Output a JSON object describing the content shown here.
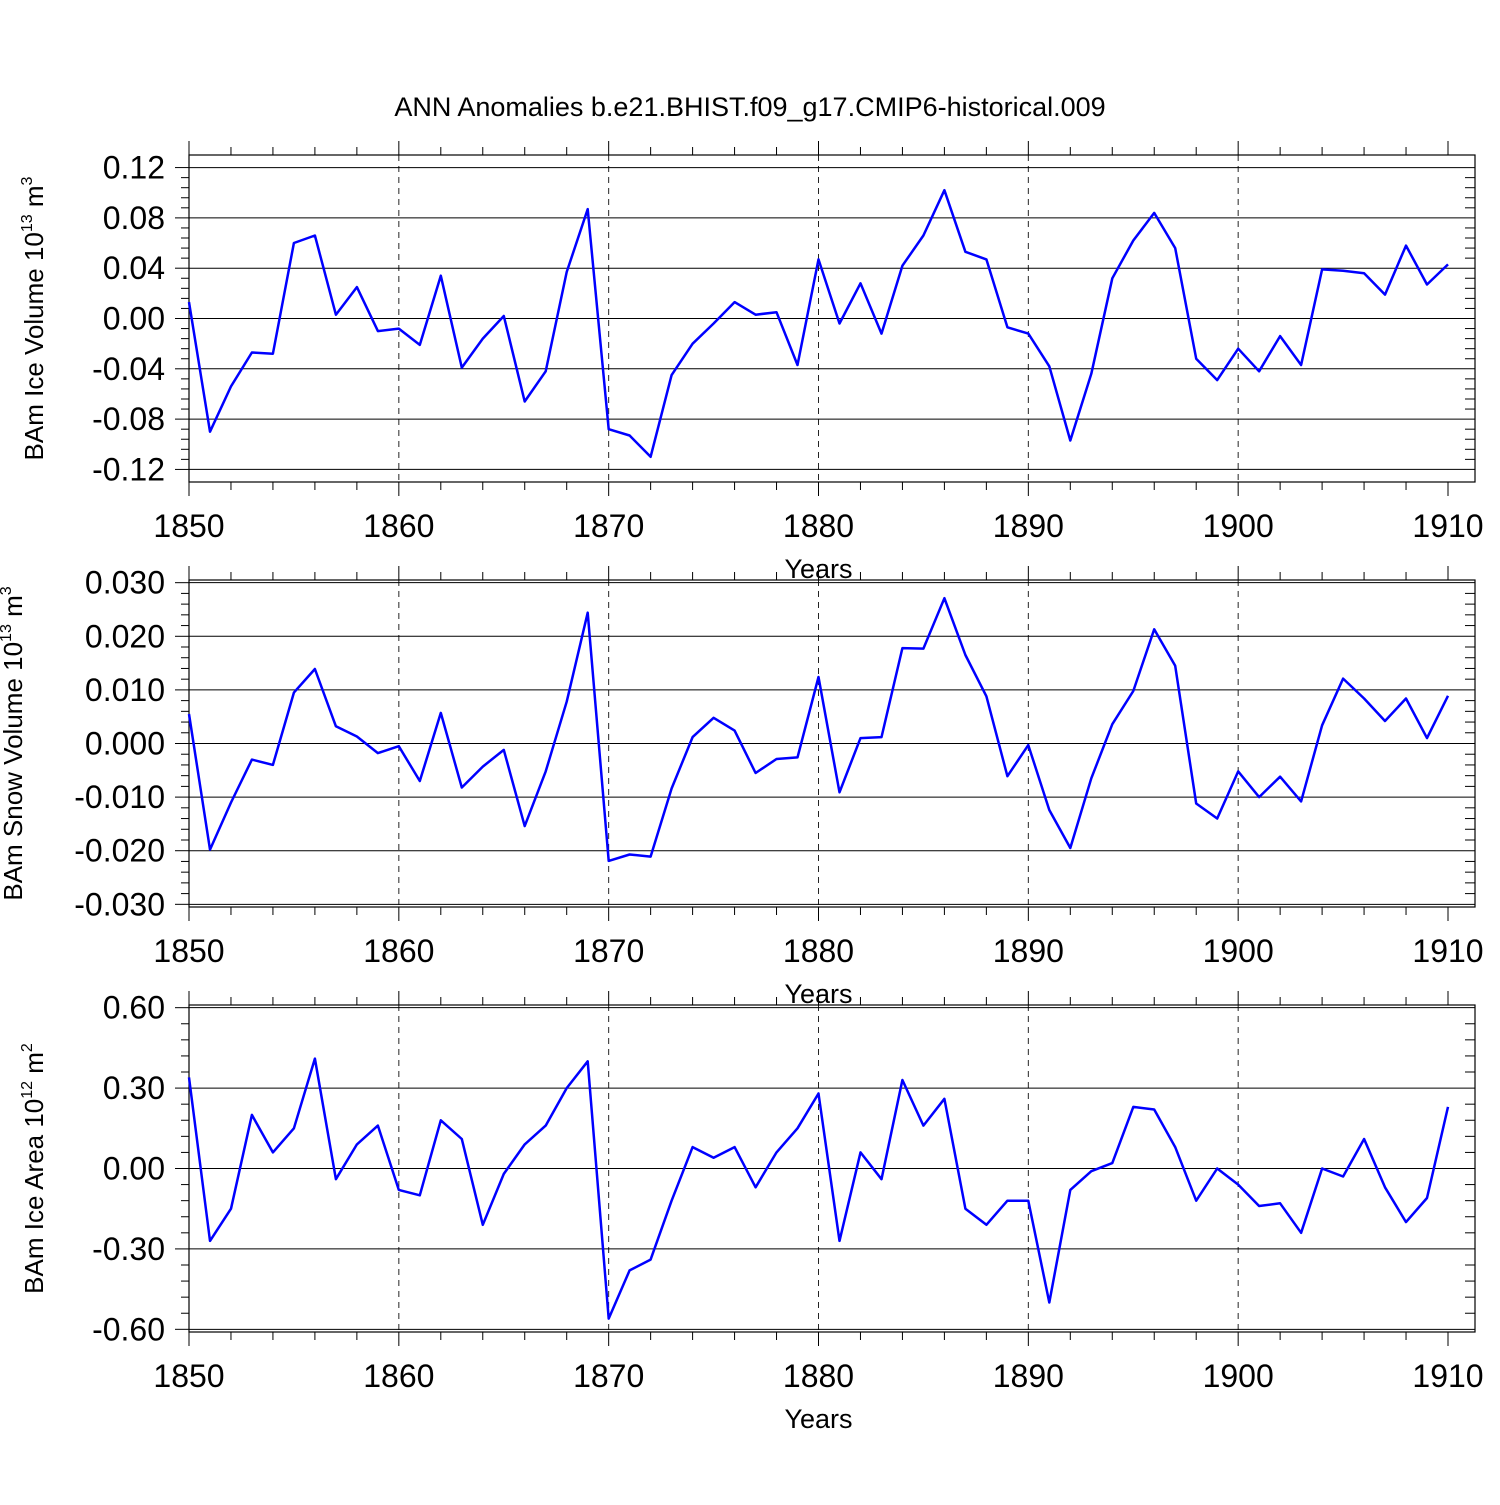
{
  "title": "ANN Anomalies b.e21.BHIST.f09_g17.CMIP6-historical.009",
  "colors": {
    "series": "#0000ff",
    "axes": "#000000"
  },
  "chart_data": [
    {
      "type": "line",
      "ylabel": "BAm Ice Volume 10",
      "ylabel_sup": "13",
      "ylabel_unit": " m",
      "ylabel_unit_sup": "3",
      "xlabel": "Years",
      "xlim": [
        1850,
        1910
      ],
      "ylim": [
        -0.13,
        0.13
      ],
      "xticks": [
        1850,
        1860,
        1870,
        1880,
        1890,
        1900,
        1910
      ],
      "xtick_labels": [
        "1850",
        "1860",
        "1870",
        "1880",
        "1890",
        "1900",
        "1910"
      ],
      "yticks": [
        -0.12,
        -0.08,
        -0.04,
        0.0,
        0.04,
        0.08,
        0.12
      ],
      "ytick_labels": [
        "-0.12",
        "-0.08",
        "-0.04",
        "0.00",
        "0.04",
        "0.08",
        "0.12"
      ],
      "reference_line": 0,
      "grid": "vertical dashed at major x ticks",
      "x": [
        1850,
        1851,
        1852,
        1853,
        1854,
        1855,
        1856,
        1857,
        1858,
        1859,
        1860,
        1861,
        1862,
        1863,
        1864,
        1865,
        1866,
        1867,
        1868,
        1869,
        1870,
        1871,
        1872,
        1873,
        1874,
        1875,
        1876,
        1877,
        1878,
        1879,
        1880,
        1881,
        1882,
        1883,
        1884,
        1885,
        1886,
        1887,
        1888,
        1889,
        1890,
        1891,
        1892,
        1893,
        1894,
        1895,
        1896,
        1897,
        1898,
        1899,
        1900,
        1901,
        1902,
        1903,
        1904,
        1905,
        1906,
        1907,
        1908,
        1909,
        1910
      ],
      "values": [
        0.013,
        -0.09,
        -0.054,
        -0.027,
        -0.028,
        0.06,
        0.066,
        0.003,
        0.025,
        -0.01,
        -0.008,
        -0.021,
        0.034,
        -0.039,
        -0.016,
        0.002,
        -0.066,
        -0.042,
        0.037,
        0.087,
        -0.088,
        -0.093,
        -0.11,
        -0.045,
        -0.02,
        -0.004,
        0.013,
        0.003,
        0.005,
        -0.037,
        0.047,
        -0.004,
        0.028,
        -0.012,
        0.042,
        0.066,
        0.102,
        0.053,
        0.047,
        -0.007,
        -0.012,
        -0.038,
        -0.097,
        -0.044,
        0.032,
        0.062,
        0.084,
        0.056,
        -0.032,
        -0.049,
        -0.024,
        -0.042,
        -0.014,
        -0.037,
        0.039,
        0.038,
        0.036,
        0.019,
        0.058,
        0.027,
        0.043
      ]
    },
    {
      "type": "line",
      "ylabel": "BAm Snow Volume 10",
      "ylabel_sup": "13",
      "ylabel_unit": " m",
      "ylabel_unit_sup": "3",
      "xlabel": "Years",
      "xlim": [
        1850,
        1910
      ],
      "ylim": [
        -0.0305,
        0.0305
      ],
      "xticks": [
        1850,
        1860,
        1870,
        1880,
        1890,
        1900,
        1910
      ],
      "xtick_labels": [
        "1850",
        "1860",
        "1870",
        "1880",
        "1890",
        "1900",
        "1910"
      ],
      "yticks": [
        -0.03,
        -0.02,
        -0.01,
        0.0,
        0.01,
        0.02,
        0.03
      ],
      "ytick_labels": [
        "-0.030",
        "-0.020",
        "-0.010",
        "0.000",
        "0.010",
        "0.020",
        "0.030"
      ],
      "reference_line": 0,
      "grid": "vertical dashed at major x ticks",
      "x": [
        1850,
        1851,
        1852,
        1853,
        1854,
        1855,
        1856,
        1857,
        1858,
        1859,
        1860,
        1861,
        1862,
        1863,
        1864,
        1865,
        1866,
        1867,
        1868,
        1869,
        1870,
        1871,
        1872,
        1873,
        1874,
        1875,
        1876,
        1877,
        1878,
        1879,
        1880,
        1881,
        1882,
        1883,
        1884,
        1885,
        1886,
        1887,
        1888,
        1889,
        1890,
        1891,
        1892,
        1893,
        1894,
        1895,
        1896,
        1897,
        1898,
        1899,
        1900,
        1901,
        1902,
        1903,
        1904,
        1905,
        1906,
        1907,
        1908,
        1909,
        1910
      ],
      "values": [
        0.0055,
        -0.0198,
        -0.011,
        -0.003,
        -0.004,
        0.0095,
        0.0139,
        0.0032,
        0.0013,
        -0.0018,
        -0.0005,
        -0.007,
        0.0057,
        -0.0082,
        -0.0043,
        -0.0012,
        -0.0154,
        -0.0052,
        0.0078,
        0.0244,
        -0.0219,
        -0.0207,
        -0.0211,
        -0.0084,
        0.0012,
        0.0048,
        0.0024,
        -0.0055,
        -0.0029,
        -0.0026,
        0.0124,
        -0.0091,
        0.001,
        0.0012,
        0.0178,
        0.0177,
        0.0271,
        0.0165,
        0.0088,
        -0.0061,
        -0.0003,
        -0.0124,
        -0.0195,
        -0.0065,
        0.0036,
        0.0098,
        0.0213,
        0.0145,
        -0.0112,
        -0.014,
        -0.0052,
        -0.01,
        -0.0062,
        -0.0108,
        0.0034,
        0.0121,
        0.0084,
        0.0042,
        0.0084,
        0.001,
        0.0089
      ]
    },
    {
      "type": "line",
      "ylabel": "BAm Ice Area 10",
      "ylabel_sup": "12",
      "ylabel_unit": " m",
      "ylabel_unit_sup": "2",
      "xlabel": "Years",
      "xlim": [
        1850,
        1910
      ],
      "ylim": [
        -0.61,
        0.61
      ],
      "xticks": [
        1850,
        1860,
        1870,
        1880,
        1890,
        1900,
        1910
      ],
      "xtick_labels": [
        "1850",
        "1860",
        "1870",
        "1880",
        "1890",
        "1900",
        "1910"
      ],
      "yticks": [
        -0.6,
        -0.3,
        0.0,
        0.3,
        0.6
      ],
      "ytick_labels": [
        "-0.60",
        "-0.30",
        "0.00",
        "0.30",
        "0.60"
      ],
      "reference_line": 0,
      "grid": "vertical dashed at major x ticks",
      "x": [
        1850,
        1851,
        1852,
        1853,
        1854,
        1855,
        1856,
        1857,
        1858,
        1859,
        1860,
        1861,
        1862,
        1863,
        1864,
        1865,
        1866,
        1867,
        1868,
        1869,
        1870,
        1871,
        1872,
        1873,
        1874,
        1875,
        1876,
        1877,
        1878,
        1879,
        1880,
        1881,
        1882,
        1883,
        1884,
        1885,
        1886,
        1887,
        1888,
        1889,
        1890,
        1891,
        1892,
        1893,
        1894,
        1895,
        1896,
        1897,
        1898,
        1899,
        1900,
        1901,
        1902,
        1903,
        1904,
        1905,
        1906,
        1907,
        1908,
        1909,
        1910
      ],
      "values": [
        0.34,
        -0.27,
        -0.15,
        0.2,
        0.06,
        0.15,
        0.41,
        -0.04,
        0.09,
        0.16,
        -0.08,
        -0.1,
        0.18,
        0.11,
        -0.21,
        -0.02,
        0.09,
        0.16,
        0.3,
        0.4,
        -0.56,
        -0.38,
        -0.34,
        -0.12,
        0.08,
        0.04,
        0.08,
        -0.07,
        0.06,
        0.15,
        0.28,
        -0.27,
        0.06,
        -0.04,
        0.33,
        0.16,
        0.26,
        -0.15,
        -0.21,
        -0.12,
        -0.12,
        -0.5,
        -0.08,
        -0.01,
        0.02,
        0.23,
        0.22,
        0.08,
        -0.12,
        0.0,
        -0.06,
        -0.14,
        -0.13,
        -0.24,
        0.0,
        -0.03,
        0.11,
        -0.07,
        -0.2,
        -0.11,
        0.23
      ]
    }
  ]
}
